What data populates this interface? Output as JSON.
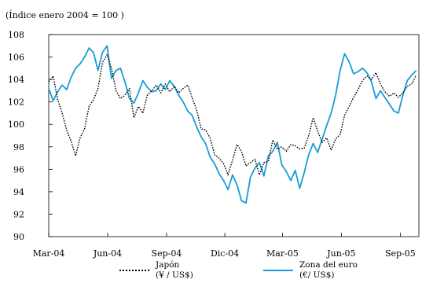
{
  "chart_data": {
    "type": "line",
    "subtitle": "(Índice enero 2004 = 100 )",
    "xlabel": "",
    "ylabel": "",
    "ylim": [
      90,
      108
    ],
    "yticks": [
      90,
      92,
      94,
      96,
      98,
      100,
      102,
      104,
      106,
      108
    ],
    "x_tick_labels": [
      "Mar-04",
      "Jun-04",
      "Sep-04",
      "Dic-04",
      "Mar-05",
      "Jun-05",
      "Sep-05"
    ],
    "x_tick_dates": [
      "2004-03-01",
      "2004-06-01",
      "2004-09-01",
      "2004-12-01",
      "2005-03-01",
      "2005-06-01",
      "2005-09-01"
    ],
    "x_range": [
      "2004-03-01",
      "2005-09-30"
    ],
    "grid": false,
    "legend_position": "bottom",
    "series": [
      {
        "name": "Japón",
        "unit": "(¥ / US$)",
        "style": "dotted",
        "color": "#000000",
        "points": [
          [
            "2004-03-01",
            103.8
          ],
          [
            "2004-03-08",
            104.3
          ],
          [
            "2004-03-15",
            102.2
          ],
          [
            "2004-03-22",
            101.0
          ],
          [
            "2004-03-29",
            99.5
          ],
          [
            "2004-04-05",
            98.5
          ],
          [
            "2004-04-12",
            97.2
          ],
          [
            "2004-04-19",
            98.8
          ],
          [
            "2004-04-26",
            99.6
          ],
          [
            "2004-05-03",
            101.6
          ],
          [
            "2004-05-10",
            102.2
          ],
          [
            "2004-05-17",
            103.2
          ],
          [
            "2004-05-24",
            105.5
          ],
          [
            "2004-05-31",
            106.2
          ],
          [
            "2004-06-07",
            105.0
          ],
          [
            "2004-06-14",
            103.0
          ],
          [
            "2004-06-21",
            102.3
          ],
          [
            "2004-06-28",
            102.6
          ],
          [
            "2004-07-05",
            103.2
          ],
          [
            "2004-07-12",
            100.6
          ],
          [
            "2004-07-19",
            101.6
          ],
          [
            "2004-07-26",
            101.0
          ],
          [
            "2004-08-02",
            102.6
          ],
          [
            "2004-08-09",
            103.0
          ],
          [
            "2004-08-16",
            103.5
          ],
          [
            "2004-08-23",
            102.8
          ],
          [
            "2004-08-30",
            103.6
          ],
          [
            "2004-09-06",
            102.9
          ],
          [
            "2004-09-13",
            103.4
          ],
          [
            "2004-09-20",
            102.8
          ],
          [
            "2004-09-27",
            103.2
          ],
          [
            "2004-10-04",
            103.5
          ],
          [
            "2004-10-11",
            102.4
          ],
          [
            "2004-10-18",
            101.3
          ],
          [
            "2004-10-25",
            99.6
          ],
          [
            "2004-11-01",
            99.5
          ],
          [
            "2004-11-08",
            98.8
          ],
          [
            "2004-11-15",
            97.3
          ],
          [
            "2004-11-22",
            97.0
          ],
          [
            "2004-11-29",
            96.5
          ],
          [
            "2004-12-06",
            95.5
          ],
          [
            "2004-12-13",
            96.8
          ],
          [
            "2004-12-20",
            98.2
          ],
          [
            "2004-12-27",
            97.6
          ],
          [
            "2005-01-03",
            96.3
          ],
          [
            "2005-01-10",
            96.6
          ],
          [
            "2005-01-17",
            96.9
          ],
          [
            "2005-01-24",
            95.5
          ],
          [
            "2005-01-31",
            96.6
          ],
          [
            "2005-02-07",
            96.7
          ],
          [
            "2005-02-14",
            98.6
          ],
          [
            "2005-02-21",
            97.8
          ],
          [
            "2005-02-28",
            98.0
          ],
          [
            "2005-03-07",
            97.6
          ],
          [
            "2005-03-14",
            98.2
          ],
          [
            "2005-03-21",
            98.1
          ],
          [
            "2005-03-28",
            97.8
          ],
          [
            "2005-04-04",
            97.9
          ],
          [
            "2005-04-11",
            99.0
          ],
          [
            "2005-04-18",
            100.6
          ],
          [
            "2005-04-25",
            99.4
          ],
          [
            "2005-05-02",
            98.4
          ],
          [
            "2005-05-09",
            98.8
          ],
          [
            "2005-05-16",
            97.7
          ],
          [
            "2005-05-23",
            98.7
          ],
          [
            "2005-05-30",
            99.1
          ],
          [
            "2005-06-06",
            100.8
          ],
          [
            "2005-06-13",
            101.6
          ],
          [
            "2005-06-20",
            102.4
          ],
          [
            "2005-06-27",
            103.1
          ],
          [
            "2005-07-04",
            103.9
          ],
          [
            "2005-07-11",
            104.3
          ],
          [
            "2005-07-18",
            104.0
          ],
          [
            "2005-07-25",
            104.6
          ],
          [
            "2005-08-01",
            103.6
          ],
          [
            "2005-08-08",
            102.9
          ],
          [
            "2005-08-15",
            102.5
          ],
          [
            "2005-08-22",
            102.8
          ],
          [
            "2005-08-29",
            102.4
          ],
          [
            "2005-09-05",
            102.8
          ],
          [
            "2005-09-12",
            103.4
          ],
          [
            "2005-09-19",
            103.6
          ],
          [
            "2005-09-26",
            104.4
          ]
        ]
      },
      {
        "name": "Zona del euro",
        "unit": "(€/ US$)",
        "style": "solid",
        "color": "#1a9bd7",
        "points": [
          [
            "2004-03-01",
            103.2
          ],
          [
            "2004-03-08",
            102.1
          ],
          [
            "2004-03-15",
            102.9
          ],
          [
            "2004-03-22",
            103.5
          ],
          [
            "2004-03-29",
            103.1
          ],
          [
            "2004-04-05",
            104.2
          ],
          [
            "2004-04-12",
            105.0
          ],
          [
            "2004-04-19",
            105.4
          ],
          [
            "2004-04-26",
            106.0
          ],
          [
            "2004-05-03",
            106.8
          ],
          [
            "2004-05-10",
            106.4
          ],
          [
            "2004-05-17",
            104.8
          ],
          [
            "2004-05-24",
            106.4
          ],
          [
            "2004-05-31",
            107.0
          ],
          [
            "2004-06-07",
            104.1
          ],
          [
            "2004-06-14",
            104.8
          ],
          [
            "2004-06-21",
            105.0
          ],
          [
            "2004-06-28",
            103.8
          ],
          [
            "2004-07-05",
            102.3
          ],
          [
            "2004-07-12",
            101.9
          ],
          [
            "2004-07-19",
            102.8
          ],
          [
            "2004-07-26",
            103.9
          ],
          [
            "2004-08-02",
            103.3
          ],
          [
            "2004-08-09",
            102.9
          ],
          [
            "2004-08-16",
            103.0
          ],
          [
            "2004-08-23",
            103.6
          ],
          [
            "2004-08-30",
            103.1
          ],
          [
            "2004-09-06",
            103.9
          ],
          [
            "2004-09-13",
            103.4
          ],
          [
            "2004-09-20",
            102.6
          ],
          [
            "2004-09-27",
            102.0
          ],
          [
            "2004-10-04",
            101.2
          ],
          [
            "2004-10-11",
            100.8
          ],
          [
            "2004-10-18",
            99.8
          ],
          [
            "2004-10-25",
            98.9
          ],
          [
            "2004-11-01",
            98.3
          ],
          [
            "2004-11-08",
            97.1
          ],
          [
            "2004-11-15",
            96.5
          ],
          [
            "2004-11-22",
            95.6
          ],
          [
            "2004-11-29",
            95.0
          ],
          [
            "2004-12-06",
            94.2
          ],
          [
            "2004-12-13",
            95.5
          ],
          [
            "2004-12-20",
            94.6
          ],
          [
            "2004-12-27",
            93.2
          ],
          [
            "2005-01-03",
            93.0
          ],
          [
            "2005-01-10",
            95.3
          ],
          [
            "2005-01-17",
            96.1
          ],
          [
            "2005-01-24",
            96.6
          ],
          [
            "2005-01-31",
            95.4
          ],
          [
            "2005-02-07",
            97.2
          ],
          [
            "2005-02-14",
            97.6
          ],
          [
            "2005-02-21",
            98.4
          ],
          [
            "2005-02-28",
            96.4
          ],
          [
            "2005-03-07",
            95.8
          ],
          [
            "2005-03-14",
            95.0
          ],
          [
            "2005-03-21",
            95.9
          ],
          [
            "2005-03-28",
            94.3
          ],
          [
            "2005-04-04",
            95.7
          ],
          [
            "2005-04-11",
            97.3
          ],
          [
            "2005-04-18",
            98.3
          ],
          [
            "2005-04-25",
            97.5
          ],
          [
            "2005-05-02",
            98.7
          ],
          [
            "2005-05-09",
            99.9
          ],
          [
            "2005-05-16",
            101.0
          ],
          [
            "2005-05-23",
            102.6
          ],
          [
            "2005-05-30",
            104.8
          ],
          [
            "2005-06-06",
            106.3
          ],
          [
            "2005-06-13",
            105.6
          ],
          [
            "2005-06-20",
            104.5
          ],
          [
            "2005-06-27",
            104.7
          ],
          [
            "2005-07-04",
            105.0
          ],
          [
            "2005-07-11",
            104.6
          ],
          [
            "2005-07-18",
            103.8
          ],
          [
            "2005-07-25",
            102.3
          ],
          [
            "2005-08-01",
            103.0
          ],
          [
            "2005-08-08",
            102.4
          ],
          [
            "2005-08-15",
            101.8
          ],
          [
            "2005-08-22",
            101.2
          ],
          [
            "2005-08-29",
            101.0
          ],
          [
            "2005-09-05",
            102.6
          ],
          [
            "2005-09-12",
            103.9
          ],
          [
            "2005-09-19",
            104.4
          ],
          [
            "2005-09-26",
            104.8
          ]
        ]
      }
    ]
  }
}
